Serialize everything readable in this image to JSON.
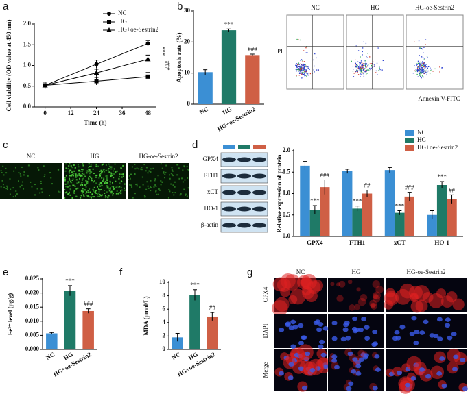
{
  "chart_data": [
    {
      "type": "line",
      "panel": "a",
      "ylabel": "Cell viability (OD value at 450 nm)",
      "xlabel": "Time (h)",
      "x": [
        0,
        24,
        48
      ],
      "xlim": [
        -5,
        52
      ],
      "xticks": [
        0,
        12,
        24,
        36,
        48
      ],
      "ylim": [
        0,
        2
      ],
      "yticks": [
        {
          "value": 0,
          "label": "0.0"
        },
        0.5,
        {
          "value": 1,
          "label": "1.0"
        },
        1.5,
        {
          "value": 2,
          "label": "2.0"
        }
      ],
      "legend": "upper-right",
      "annotations": [
        "***",
        "###"
      ],
      "series": [
        {
          "name": "NC",
          "color": "#000000",
          "marker": "circle",
          "values": [
            0.52,
            1.03,
            1.53
          ],
          "errors": [
            0.08,
            0.1,
            0.07
          ]
        },
        {
          "name": "HG",
          "color": "#000000",
          "marker": "square",
          "values": [
            0.52,
            0.62,
            0.73
          ],
          "errors": [
            0.08,
            0.09,
            0.1
          ]
        },
        {
          "name": "HG+oe-Sestrin2",
          "color": "#000000",
          "marker": "triangle",
          "values": [
            0.52,
            0.82,
            1.15
          ],
          "errors": [
            0.08,
            0.09,
            0.1
          ]
        }
      ]
    },
    {
      "type": "bar",
      "panel": "b",
      "ylabel": "Apoptosis rate (%)",
      "categories": [
        "NC",
        "HG",
        "HG+oe-Sestrin2"
      ],
      "values": [
        10.3,
        23.8,
        15.8
      ],
      "errors": [
        0.8,
        0.4,
        0.3
      ],
      "significance": [
        null,
        "***",
        "###"
      ],
      "colors": [
        "#3b8fd4",
        "#1f7a67",
        "#cf5f45"
      ],
      "ylim": [
        0,
        30
      ],
      "yticks": [
        0,
        10,
        20,
        30
      ]
    },
    {
      "type": "bar",
      "panel": "d",
      "ylabel": "Relative expression of protein",
      "categories": [
        "GPX4",
        "FTH1",
        "xCT",
        "HO-1"
      ],
      "ylim": [
        0,
        2
      ],
      "yticks": [
        {
          "value": 0,
          "label": "0.0"
        },
        0.5,
        {
          "value": 1,
          "label": "1.0"
        },
        1.5,
        {
          "value": 2,
          "label": "2.0"
        }
      ],
      "legend": "upper-right",
      "series": [
        {
          "name": "NC",
          "color": "#3b8fd4",
          "values": [
            1.65,
            1.52,
            1.55,
            0.5
          ],
          "errors": [
            0.1,
            0.05,
            0.06,
            0.1
          ],
          "significance": [
            null,
            null,
            null,
            null
          ]
        },
        {
          "name": "HG",
          "color": "#1f7a67",
          "values": [
            0.62,
            0.65,
            0.55,
            1.2
          ],
          "errors": [
            0.1,
            0.06,
            0.05,
            0.08
          ],
          "significance": [
            "***",
            "***",
            "***",
            "***"
          ]
        },
        {
          "name": "HG+oe-Sestrin2",
          "color": "#cf5f45",
          "values": [
            1.15,
            1.0,
            0.93,
            0.87
          ],
          "errors": [
            0.17,
            0.08,
            0.1,
            0.1
          ],
          "significance": [
            "###",
            "##",
            "###",
            "##"
          ]
        }
      ]
    },
    {
      "type": "bar",
      "panel": "e",
      "ylabel": "Fe²⁺ level (μg/g)",
      "categories": [
        "NC",
        "HG",
        "HG+oe-Sestrin2"
      ],
      "values": [
        0.0057,
        0.0208,
        0.0136
      ],
      "errors": [
        0.0003,
        0.0018,
        0.0008
      ],
      "significance": [
        null,
        "***",
        "###"
      ],
      "colors": [
        "#3b8fd4",
        "#1f7a67",
        "#cf5f45"
      ],
      "ylim": [
        0,
        0.025
      ],
      "yticks": [
        {
          "value": 0,
          "label": "0.000"
        },
        0.005,
        {
          "value": 0.01,
          "label": "0.010"
        },
        0.015,
        {
          "value": 0.02,
          "label": "0.020"
        },
        0.025
      ]
    },
    {
      "type": "bar",
      "panel": "f",
      "ylabel": "MDA (μmol/L)",
      "categories": [
        "NC",
        "HG",
        "HG+oe-Sestrin2"
      ],
      "values": [
        1.8,
        8.1,
        4.9
      ],
      "errors": [
        0.6,
        0.8,
        0.6
      ],
      "significance": [
        null,
        "***",
        "##"
      ],
      "colors": [
        "#3b8fd4",
        "#1f7a67",
        "#cf5f45"
      ],
      "ylim": [
        0,
        10
      ],
      "yticks": [
        0,
        2,
        4,
        6,
        8,
        10
      ]
    }
  ],
  "images": {
    "flow": {
      "columns": [
        "NC",
        "HG",
        "HG-oe-Sestrin2"
      ],
      "ylabel": "PI",
      "xlabel": "Annexin V-FITC"
    },
    "microscopy": {
      "panel": "c",
      "columns": [
        "NC",
        "HG",
        "HG-oe-Sestrin2"
      ]
    },
    "blot": {
      "rows": [
        "GPX4",
        "FTH1",
        "xCT",
        "HO-1",
        "β-actin"
      ]
    },
    "fluorescence": {
      "panel": "g",
      "columns": [
        "NC",
        "HG",
        "HG-oe-Sestrin2"
      ],
      "rows": [
        "GPX4",
        "DAPI",
        "Merge"
      ]
    }
  }
}
